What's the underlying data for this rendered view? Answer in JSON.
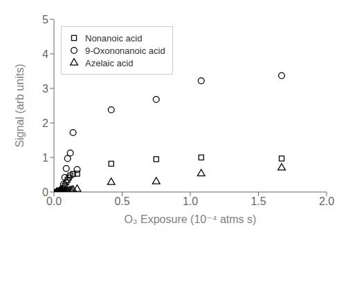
{
  "chart_data": {
    "type": "scatter",
    "title": "",
    "xlabel": "O₃ Exposure (10⁻⁴ atms s)",
    "ylabel": "Signal (arb units)",
    "xlim": [
      0,
      2.0
    ],
    "ylim": [
      0,
      5.0
    ],
    "xticks": [
      {
        "value": 0.0,
        "label": "0.0"
      },
      0.5,
      {
        "value": 1.0,
        "label": "1.0"
      },
      1.5,
      {
        "value": 2.0,
        "label": "2.0"
      }
    ],
    "yticks": [
      0,
      1,
      2,
      3,
      4,
      5
    ],
    "grid": false,
    "legend": "upper left",
    "series": [
      {
        "name": "Nonanoic acid",
        "color": "black",
        "marker": "square",
        "x": [
          0.02,
          0.03,
          0.04,
          0.05,
          0.06,
          0.07,
          0.08,
          0.09,
          0.1,
          0.11,
          0.12,
          0.14,
          0.17,
          0.42,
          0.75,
          1.08,
          1.67
        ],
        "values": [
          0.0,
          0.0,
          0.01,
          0.02,
          0.05,
          0.1,
          0.18,
          0.28,
          0.35,
          0.42,
          0.48,
          0.52,
          0.53,
          0.82,
          0.95,
          1.0,
          0.97
        ]
      },
      {
        "name": "9-Oxononanoic acid",
        "color": "black",
        "marker": "circle",
        "x": [
          0.02,
          0.03,
          0.04,
          0.05,
          0.06,
          0.07,
          0.08,
          0.09,
          0.1,
          0.12,
          0.14,
          0.17,
          0.42,
          0.75,
          1.08,
          1.67
        ],
        "values": [
          0.0,
          0.0,
          0.02,
          0.05,
          0.1,
          0.22,
          0.42,
          0.68,
          0.97,
          1.13,
          1.72,
          0.65,
          2.38,
          2.68,
          3.22,
          3.37
        ]
      },
      {
        "name": "Azelaic acid",
        "color": "black",
        "marker": "triangle",
        "x": [
          0.02,
          0.03,
          0.04,
          0.05,
          0.06,
          0.07,
          0.08,
          0.09,
          0.1,
          0.11,
          0.12,
          0.13,
          0.14,
          0.17,
          0.42,
          0.75,
          1.08,
          1.67
        ],
        "values": [
          0.0,
          0.0,
          0.0,
          0.0,
          0.0,
          0.01,
          0.01,
          0.02,
          0.02,
          0.03,
          0.04,
          0.05,
          0.06,
          0.08,
          0.28,
          0.3,
          0.53,
          0.7
        ]
      }
    ]
  }
}
